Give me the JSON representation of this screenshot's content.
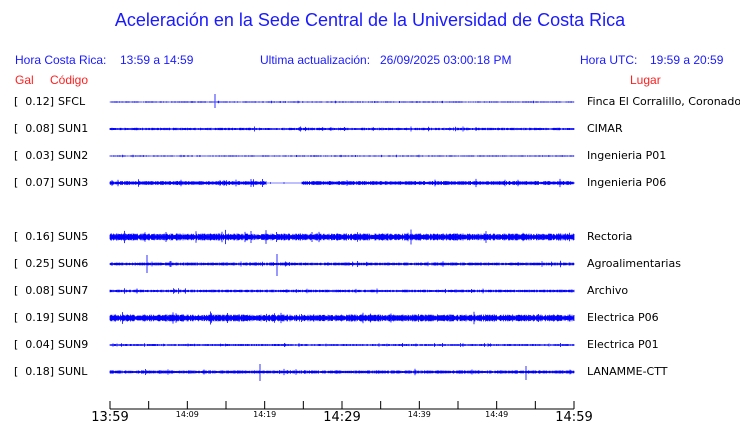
{
  "title": "Aceleración en la Sede Central de la Universidad de Costa Rica",
  "header": {
    "cr_label": "Hora Costa Rica:",
    "cr_range": "13:59 a 14:59",
    "update_label": "Ultima actualización:",
    "update_value": "26/09/2025 03:00:18 PM",
    "utc_label": "Hora UTC:",
    "utc_range": "19:59 a 20:59"
  },
  "columns": {
    "gal": "Gal",
    "code": "Código",
    "place": "Lugar"
  },
  "stations": [
    {
      "gal": "[  0.12]",
      "code": "SFCL",
      "place": "Finca El Corralillo, Coronado"
    },
    {
      "gal": "[  0.08]",
      "code": "SUN1",
      "place": "CIMAR"
    },
    {
      "gal": "[  0.03]",
      "code": "SUN2",
      "place": "Ingenieria P01"
    },
    {
      "gal": "[  0.07]",
      "code": "SUN3",
      "place": "Ingenieria P06"
    },
    {
      "gal": "[  0.16]",
      "code": "SUN5",
      "place": "Rectoria"
    },
    {
      "gal": "[  0.25]",
      "code": "SUN6",
      "place": "Agroalimentarias"
    },
    {
      "gal": "[  0.08]",
      "code": "SUN7",
      "place": "Archivo"
    },
    {
      "gal": "[  0.19]",
      "code": "SUN8",
      "place": "Electrica P06"
    },
    {
      "gal": "[  0.04]",
      "code": "SUN9",
      "place": "Electrica P01"
    },
    {
      "gal": "[  0.18]",
      "code": "SUNL",
      "place": "LANAMME-CTT"
    }
  ],
  "time_axis": {
    "major": [
      "13:59",
      "14:29",
      "14:59"
    ],
    "minor": [
      "14:09",
      "14:19",
      "14:39",
      "14:49"
    ]
  },
  "colors": {
    "trace": "#0000ff",
    "header": "#1a1aff",
    "column_header": "#ff2020"
  }
}
